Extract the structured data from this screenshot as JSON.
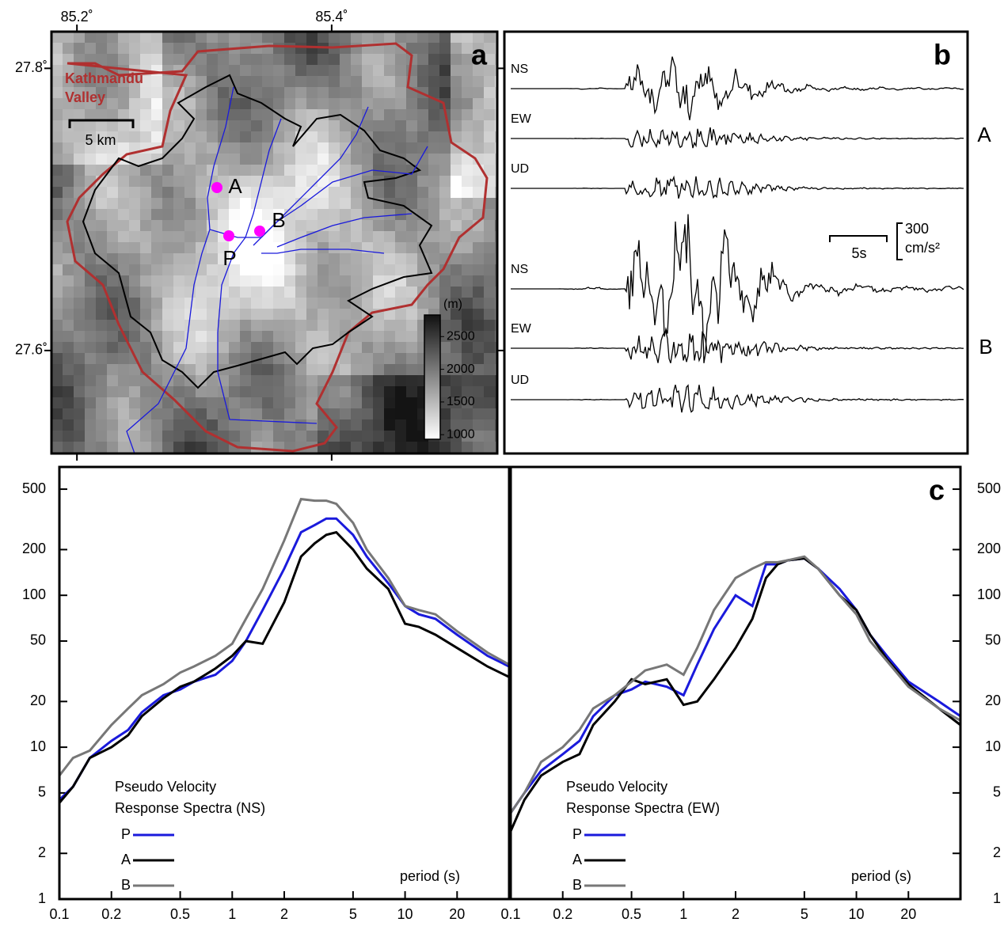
{
  "map_panel": {
    "panel_label": "a",
    "lon_ticks": [
      {
        "value": 85.2,
        "label": "85.2˚"
      },
      {
        "value": 85.4,
        "label": "85.4˚"
      }
    ],
    "lat_ticks": [
      {
        "value": 27.8,
        "label": "27.8˚"
      },
      {
        "value": 27.6,
        "label": "27.6˚"
      }
    ],
    "lonlim": [
      85.18,
      85.53
    ],
    "latlim": [
      27.527,
      27.826
    ],
    "valley_label": [
      "Kathmandu",
      "Valley"
    ],
    "scale_label": "5 km",
    "stations": [
      "A",
      "P",
      "B"
    ],
    "colorbar": {
      "label": "(m)",
      "lim": [
        930,
        2830
      ],
      "ticks": [
        1000,
        1500,
        2000,
        2500
      ]
    }
  },
  "waveform_panel": {
    "panel_label": "b",
    "components": [
      "NS",
      "EW",
      "UD",
      "NS",
      "EW",
      "UD"
    ],
    "stations": [
      "A",
      "B"
    ],
    "time_scale": "5s",
    "amp_scale": [
      "300",
      "cm/s²"
    ]
  },
  "chart_data": [
    {
      "type": "line",
      "panel_label": "c",
      "title": [
        "Pseudo Velocity",
        "Response Spectra (NS)"
      ],
      "x_label": "period (s)",
      "log_x": true,
      "log_y": true,
      "xlim": [
        0.1,
        40
      ],
      "ylim": [
        1,
        700
      ],
      "xticks": [
        0.1,
        0.2,
        0.5,
        1,
        2,
        5,
        10,
        20
      ],
      "yticks": [
        1,
        2,
        5,
        10,
        20,
        50,
        100,
        200,
        500
      ],
      "x": [
        0.1,
        0.12,
        0.15,
        0.2,
        0.25,
        0.3,
        0.4,
        0.5,
        0.6,
        0.8,
        1,
        1.2,
        1.5,
        2,
        2.5,
        3,
        3.5,
        4,
        5,
        6,
        8,
        10,
        12,
        15,
        20,
        30,
        40
      ],
      "series": [
        {
          "name": "P",
          "color": "#1a1adc",
          "values": [
            4.5,
            5.5,
            8.5,
            11,
            13,
            17,
            22,
            24,
            27,
            30,
            37,
            50,
            80,
            150,
            260,
            290,
            320,
            320,
            250,
            180,
            120,
            85,
            75,
            70,
            55,
            40,
            34
          ]
        },
        {
          "name": "A",
          "color": "#000000",
          "values": [
            4.3,
            5.5,
            8.5,
            10,
            12,
            16,
            21,
            25,
            27,
            33,
            40,
            50,
            48,
            90,
            180,
            220,
            250,
            260,
            200,
            150,
            110,
            65,
            62,
            55,
            45,
            34,
            29
          ]
        },
        {
          "name": "B",
          "color": "#777777",
          "values": [
            6.5,
            8.5,
            9.5,
            14,
            18,
            22,
            26,
            31,
            34,
            40,
            48,
            70,
            110,
            230,
            430,
            420,
            420,
            400,
            300,
            200,
            130,
            85,
            80,
            75,
            58,
            42,
            35
          ]
        }
      ]
    },
    {
      "type": "line",
      "title": [
        "Pseudo Velocity",
        "Response Spectra (EW)"
      ],
      "x_label": "period (s)",
      "log_x": true,
      "log_y": true,
      "xlim": [
        0.1,
        40
      ],
      "ylim": [
        1,
        700
      ],
      "xticks": [
        0.1,
        0.2,
        0.5,
        1,
        2,
        5,
        10,
        20
      ],
      "yticks": [
        1,
        2,
        5,
        10,
        20,
        50,
        100,
        200,
        500
      ],
      "x": [
        0.1,
        0.12,
        0.15,
        0.2,
        0.25,
        0.3,
        0.4,
        0.5,
        0.6,
        0.8,
        1,
        1.2,
        1.5,
        2,
        2.5,
        3,
        3.5,
        4,
        5,
        6,
        8,
        10,
        12,
        15,
        20,
        30,
        40
      ],
      "series": [
        {
          "name": "P",
          "color": "#1a1adc",
          "values": [
            3.7,
            5,
            7,
            9,
            11,
            16,
            22,
            24,
            27,
            25,
            22,
            35,
            60,
            100,
            85,
            160,
            160,
            170,
            175,
            150,
            110,
            80,
            55,
            40,
            27,
            20,
            16
          ]
        },
        {
          "name": "A",
          "color": "#000000",
          "values": [
            2.8,
            4.5,
            6.5,
            8,
            9,
            14,
            20,
            28,
            26,
            28,
            19,
            20,
            28,
            45,
            70,
            130,
            160,
            170,
            175,
            150,
            100,
            80,
            55,
            38,
            26,
            18,
            14
          ]
        },
        {
          "name": "B",
          "color": "#777777",
          "values": [
            3.7,
            5,
            8,
            10,
            13,
            18,
            22,
            27,
            32,
            35,
            30,
            45,
            80,
            130,
            150,
            165,
            165,
            170,
            180,
            150,
            100,
            75,
            50,
            37,
            25,
            18,
            15
          ]
        }
      ]
    }
  ]
}
